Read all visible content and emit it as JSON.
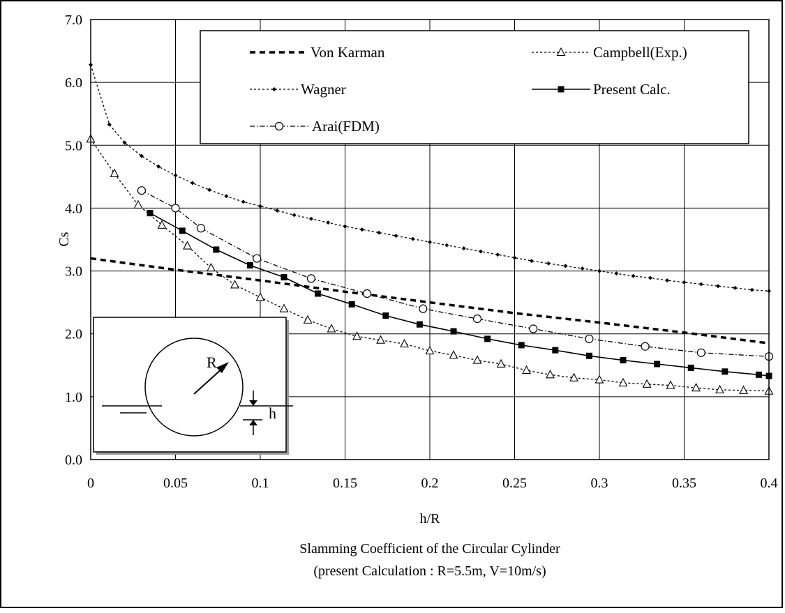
{
  "chart_data": {
    "type": "line",
    "title": "Slamming Coefficient of the Circular Cylinder",
    "subtitle": "(present Calculation : R=5.5m, V=10m/s)",
    "xlabel": "h/R",
    "ylabel": "Cs",
    "xlim": [
      0,
      0.4
    ],
    "ylim": [
      0,
      7
    ],
    "x_ticks": [
      "0",
      "0.05",
      "0.1",
      "0.15",
      "0.2",
      "0.25",
      "0.3",
      "0.35",
      "0.4"
    ],
    "y_ticks": [
      "0.0",
      "1.0",
      "2.0",
      "3.0",
      "4.0",
      "5.0",
      "6.0",
      "7.0"
    ],
    "grid": true,
    "legend_position": "top-right",
    "series": [
      {
        "name": "Von Karman",
        "style": "dashed",
        "marker": "none",
        "x": [
          0,
          0.05,
          0.1,
          0.15,
          0.2,
          0.25,
          0.3,
          0.35,
          0.4
        ],
        "y": [
          3.2,
          3.02,
          2.85,
          2.67,
          2.5,
          2.33,
          2.18,
          2.02,
          1.85
        ]
      },
      {
        "name": "Wagner",
        "style": "dotted",
        "marker": "small-diamond",
        "x": [
          0,
          0.011,
          0.02,
          0.03,
          0.04,
          0.05,
          0.06,
          0.07,
          0.08,
          0.09,
          0.1,
          0.11,
          0.12,
          0.13,
          0.14,
          0.15,
          0.16,
          0.17,
          0.18,
          0.19,
          0.2,
          0.21,
          0.22,
          0.23,
          0.24,
          0.25,
          0.26,
          0.27,
          0.28,
          0.29,
          0.3,
          0.31,
          0.32,
          0.33,
          0.34,
          0.35,
          0.36,
          0.37,
          0.38,
          0.39,
          0.4
        ],
        "y": [
          6.28,
          5.33,
          5.04,
          4.83,
          4.66,
          4.52,
          4.4,
          4.29,
          4.19,
          4.1,
          4.03,
          3.96,
          3.89,
          3.83,
          3.77,
          3.71,
          3.66,
          3.61,
          3.56,
          3.51,
          3.46,
          3.41,
          3.36,
          3.31,
          3.26,
          3.21,
          3.16,
          3.12,
          3.08,
          3.04,
          3.0,
          2.96,
          2.92,
          2.89,
          2.85,
          2.82,
          2.79,
          2.76,
          2.73,
          2.7,
          2.68
        ]
      },
      {
        "name": "Arai(FDM)",
        "style": "dash-dot",
        "marker": "open-circle",
        "x": [
          0.03,
          0.05,
          0.065,
          0.098,
          0.13,
          0.163,
          0.196,
          0.228,
          0.261,
          0.294,
          0.327,
          0.36,
          0.4
        ],
        "y": [
          4.28,
          4.0,
          3.68,
          3.2,
          2.88,
          2.64,
          2.4,
          2.24,
          2.08,
          1.92,
          1.8,
          1.7,
          1.64
        ]
      },
      {
        "name": "Campbell(Exp.)",
        "style": "dotted",
        "marker": "open-triangle",
        "x": [
          0,
          0.014,
          0.028,
          0.042,
          0.057,
          0.071,
          0.085,
          0.1,
          0.114,
          0.128,
          0.142,
          0.157,
          0.171,
          0.185,
          0.2,
          0.214,
          0.228,
          0.242,
          0.257,
          0.271,
          0.285,
          0.3,
          0.314,
          0.328,
          0.342,
          0.357,
          0.371,
          0.385,
          0.4
        ],
        "y": [
          5.1,
          4.55,
          4.05,
          3.73,
          3.4,
          3.05,
          2.78,
          2.58,
          2.4,
          2.22,
          2.08,
          1.96,
          1.9,
          1.84,
          1.73,
          1.66,
          1.58,
          1.52,
          1.42,
          1.35,
          1.3,
          1.27,
          1.22,
          1.2,
          1.18,
          1.14,
          1.11,
          1.1,
          1.09
        ]
      },
      {
        "name": "Present Calc.",
        "style": "solid",
        "marker": "filled-square",
        "x": [
          0.035,
          0.054,
          0.074,
          0.094,
          0.114,
          0.134,
          0.154,
          0.174,
          0.194,
          0.214,
          0.234,
          0.254,
          0.274,
          0.294,
          0.314,
          0.334,
          0.354,
          0.374,
          0.394,
          0.4
        ],
        "y": [
          3.92,
          3.64,
          3.34,
          3.09,
          2.9,
          2.64,
          2.47,
          2.29,
          2.15,
          2.04,
          1.92,
          1.82,
          1.74,
          1.65,
          1.58,
          1.52,
          1.46,
          1.4,
          1.35,
          1.33
        ]
      }
    ],
    "inset": {
      "radius_label": "R",
      "depth_label": "h"
    }
  }
}
